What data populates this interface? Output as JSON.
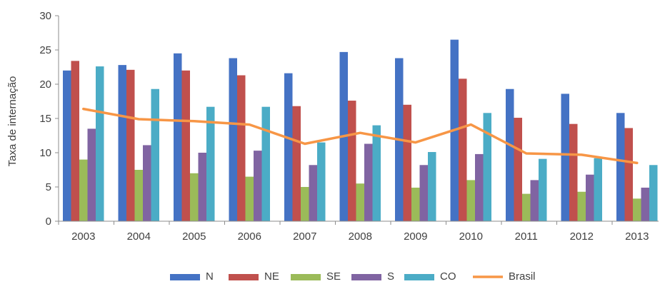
{
  "chart_data": {
    "type": "bar",
    "categories": [
      "2003",
      "2004",
      "2005",
      "2006",
      "2007",
      "2008",
      "2009",
      "2010",
      "2011",
      "2012",
      "2013"
    ],
    "ylabel": "Taxa de internação",
    "ylim": [
      0,
      30
    ],
    "yticks": [
      "0",
      "5",
      "10",
      "15",
      "20",
      "25",
      "30"
    ],
    "legend_position": "bottom",
    "grid": false,
    "series": [
      {
        "name": "N",
        "type": "bar",
        "color": "#4472C4",
        "values": [
          22.0,
          22.8,
          24.5,
          23.8,
          21.6,
          24.7,
          23.8,
          26.5,
          19.3,
          18.6,
          15.8
        ]
      },
      {
        "name": "NE",
        "type": "bar",
        "color": "#C0504D",
        "values": [
          23.4,
          22.1,
          22.0,
          21.3,
          16.8,
          17.6,
          17.0,
          20.8,
          15.1,
          14.2,
          13.6
        ]
      },
      {
        "name": "SE",
        "type": "bar",
        "color": "#9BBB59",
        "values": [
          9.0,
          7.5,
          7.0,
          6.5,
          5.0,
          5.5,
          4.9,
          6.0,
          4.0,
          4.3,
          3.3
        ]
      },
      {
        "name": "S",
        "type": "bar",
        "color": "#8064A2",
        "values": [
          13.5,
          11.1,
          10.0,
          10.3,
          8.2,
          11.3,
          8.2,
          9.8,
          6.0,
          6.8,
          4.9
        ]
      },
      {
        "name": "CO",
        "type": "bar",
        "color": "#4BACC6",
        "values": [
          22.6,
          19.3,
          16.7,
          16.7,
          11.5,
          14.0,
          10.1,
          15.8,
          9.1,
          9.2,
          8.2
        ]
      },
      {
        "name": "Brasil",
        "type": "line",
        "color": "#F79646",
        "values": [
          16.4,
          14.9,
          14.6,
          14.1,
          11.3,
          12.9,
          11.5,
          14.1,
          9.9,
          9.7,
          8.5
        ]
      }
    ]
  }
}
